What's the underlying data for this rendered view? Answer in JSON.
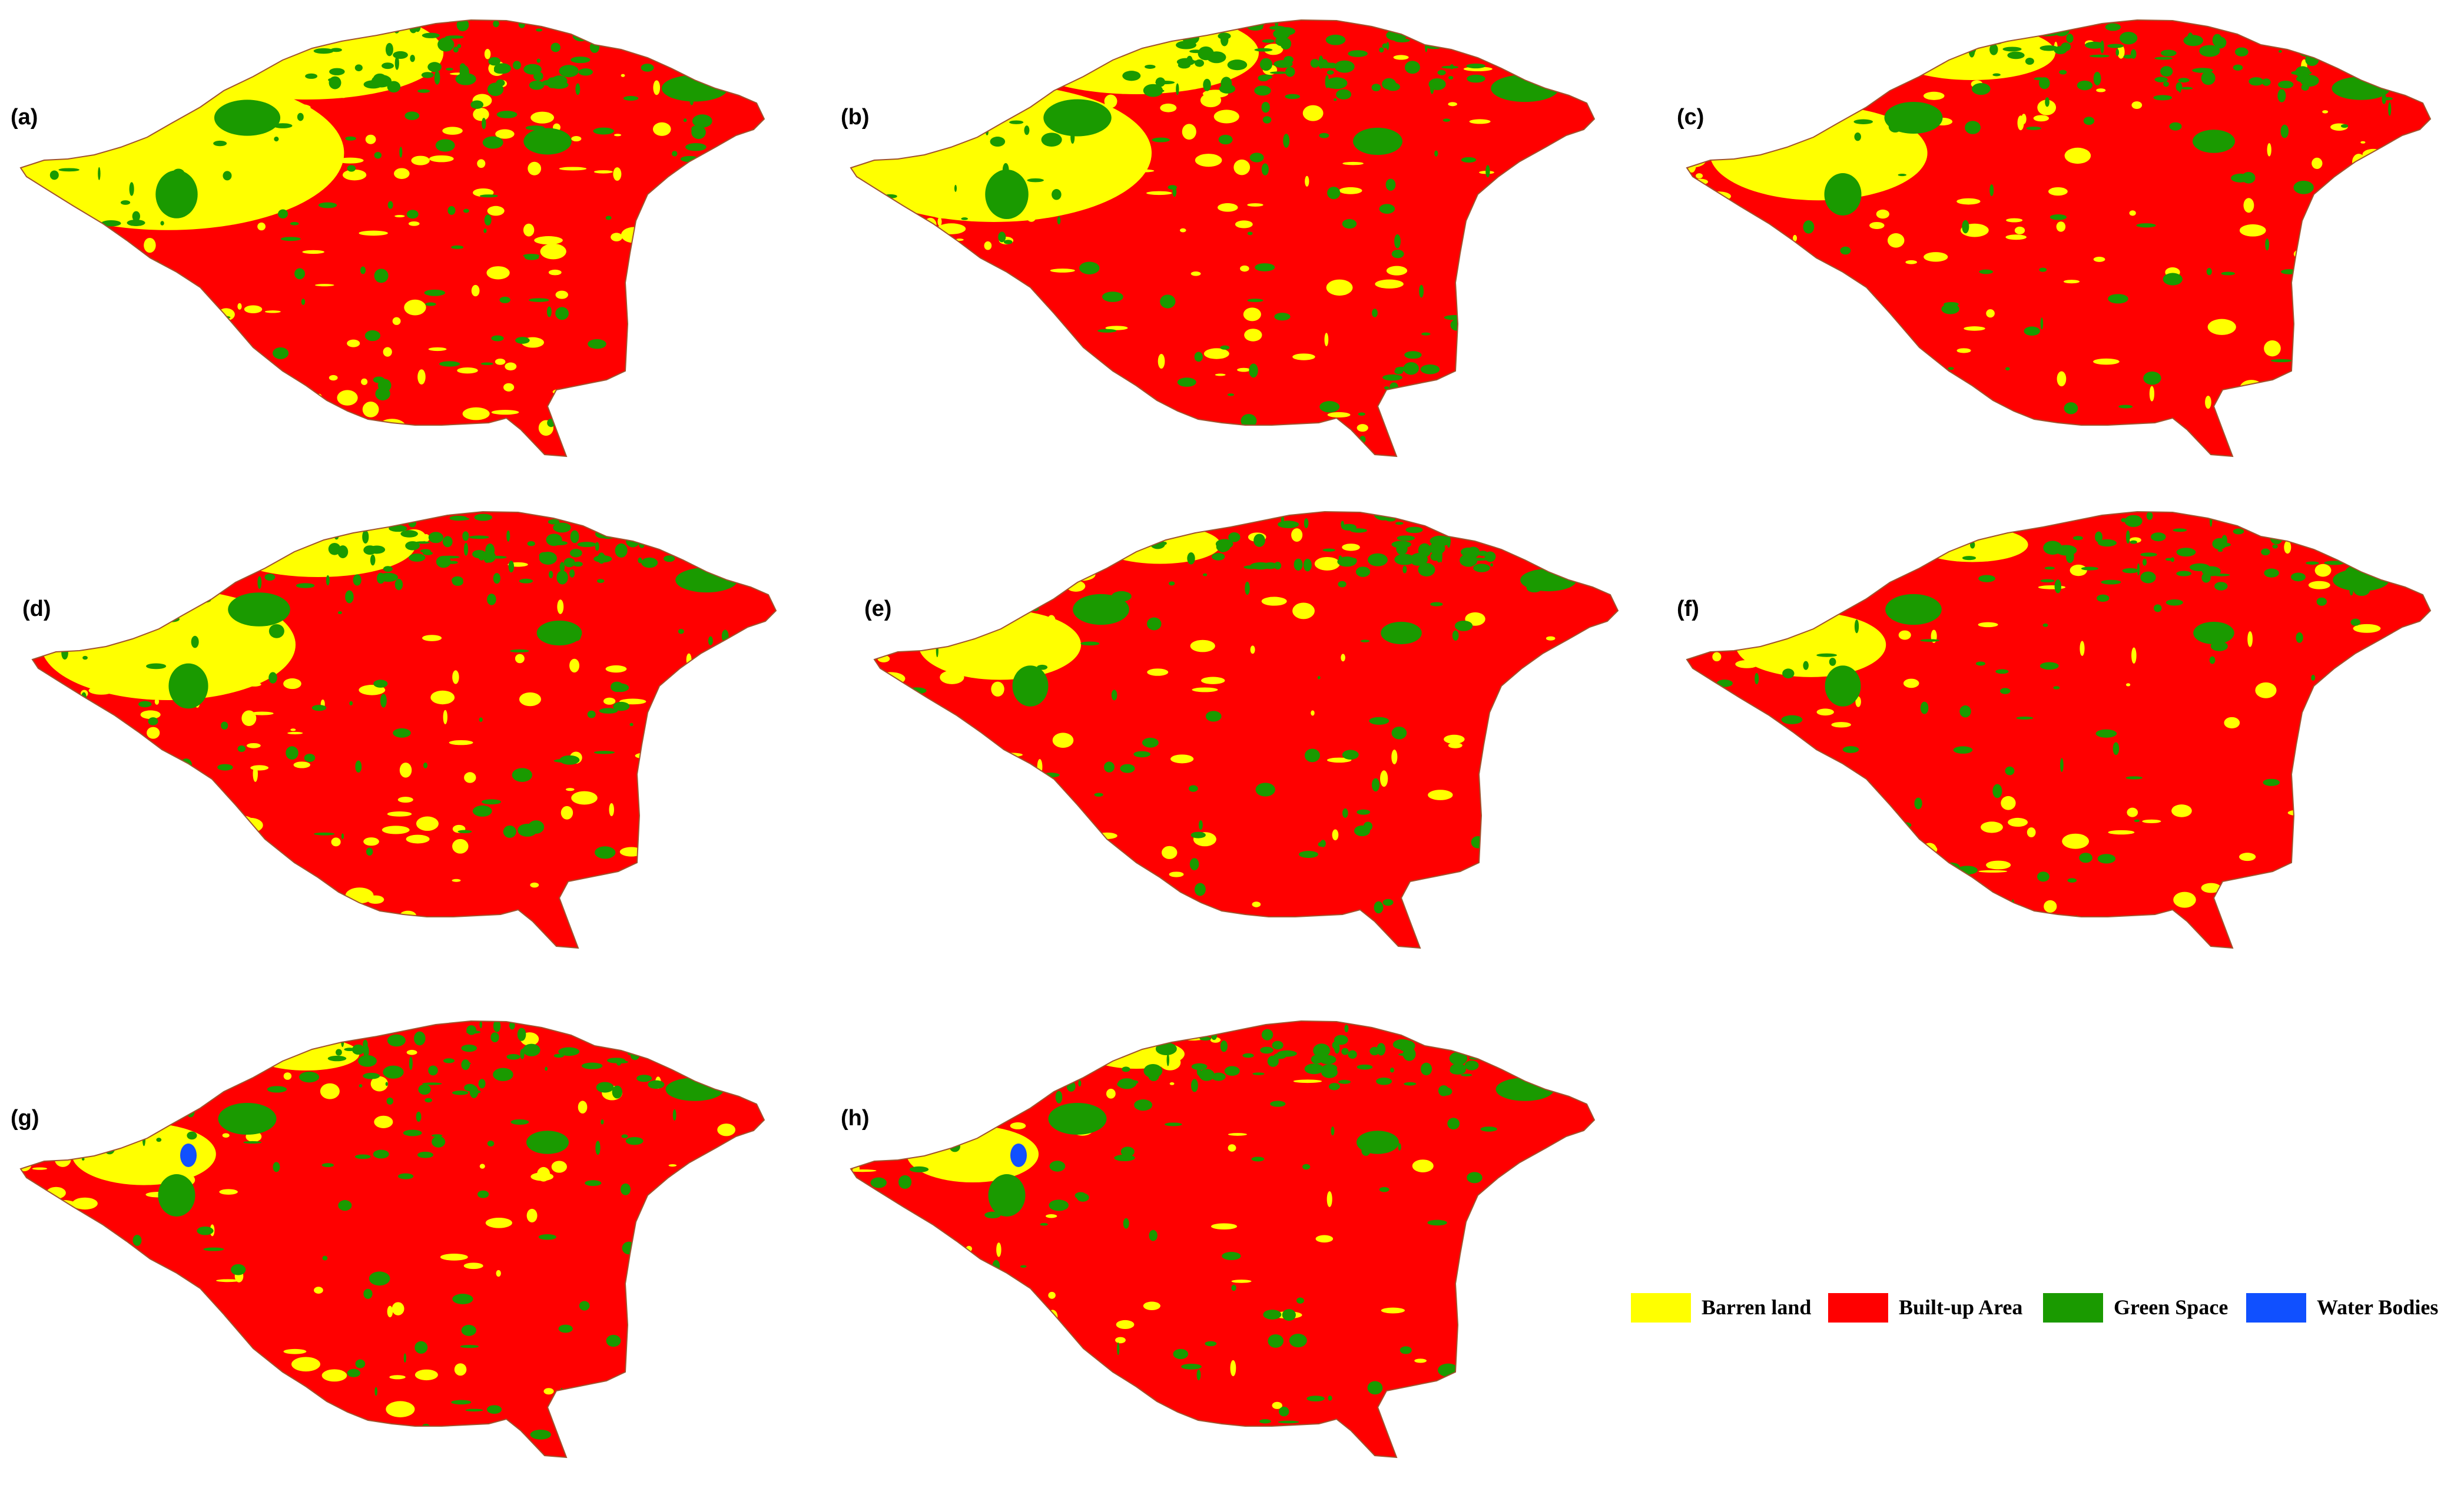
{
  "colors": {
    "barren": "#ffff00",
    "built": "#ff0000",
    "green": "#1a9a00",
    "water": "#1050ff",
    "outline": "#a0522d"
  },
  "panels": [
    {
      "label": "(a)",
      "barren_share": 0.46,
      "green_share": 0.14,
      "water": false
    },
    {
      "label": "(b)",
      "barren_share": 0.4,
      "green_share": 0.15,
      "water": false
    },
    {
      "label": "(c)",
      "barren_share": 0.24,
      "green_share": 0.1,
      "water": false
    },
    {
      "label": "(d)",
      "barren_share": 0.3,
      "green_share": 0.12,
      "water": false
    },
    {
      "label": "(e)",
      "barren_share": 0.15,
      "green_share": 0.09,
      "water": false
    },
    {
      "label": "(f)",
      "barren_share": 0.13,
      "green_share": 0.09,
      "water": false
    },
    {
      "label": "(g)",
      "barren_share": 0.12,
      "green_share": 0.1,
      "water": true
    },
    {
      "label": "(h)",
      "barren_share": 0.1,
      "green_share": 0.1,
      "water": true
    }
  ],
  "legend": [
    {
      "label": "Barren land",
      "color": "#ffff00"
    },
    {
      "label": "Built-up Area",
      "color": "#ff0000"
    },
    {
      "label": "Green Space",
      "color": "#1a9a00"
    },
    {
      "label": "Water Bodies",
      "color": "#1050ff"
    }
  ]
}
